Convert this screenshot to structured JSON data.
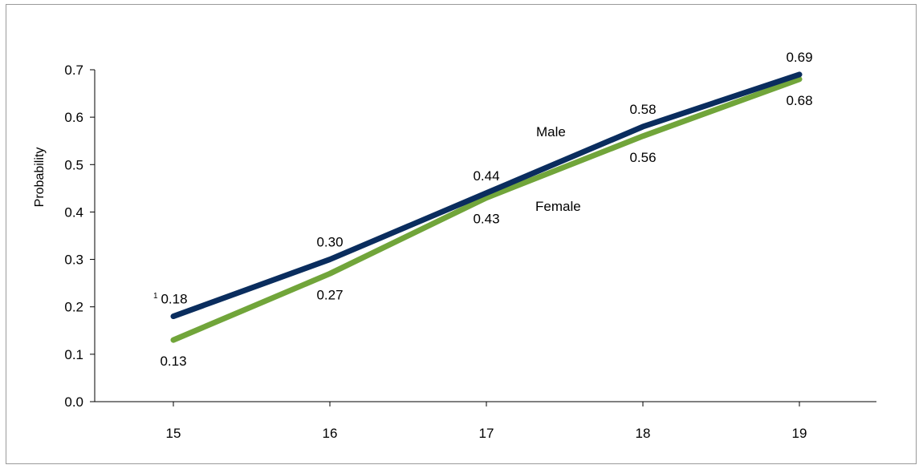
{
  "chart_data": {
    "type": "line",
    "title": "",
    "xlabel": "",
    "ylabel": "Probability",
    "x": [
      15,
      16,
      17,
      18,
      19
    ],
    "ylim": [
      0.0,
      0.7
    ],
    "yticks": [
      "0.0",
      "0.1",
      "0.2",
      "0.3",
      "0.4",
      "0.5",
      "0.6",
      "0.7"
    ],
    "xticks": [
      "15",
      "16",
      "17",
      "18",
      "19"
    ],
    "grid": false,
    "legend": "none",
    "series": [
      {
        "name": "Male",
        "color": "#0a2d5e",
        "values": [
          0.18,
          0.3,
          0.44,
          0.58,
          0.69
        ],
        "labels": [
          "0.18",
          "0.30",
          "0.44",
          "0.58",
          "0.69"
        ],
        "label_position": "above"
      },
      {
        "name": "Female",
        "color": "#71a53a",
        "values": [
          0.13,
          0.27,
          0.43,
          0.56,
          0.68
        ],
        "labels": [
          "0.13",
          "0.27",
          "0.43",
          "0.56",
          "0.68"
        ],
        "label_position": "below"
      }
    ],
    "annotations": [
      {
        "text": "1",
        "attached_to": "Male label at x=15",
        "style": "superscript"
      }
    ]
  }
}
